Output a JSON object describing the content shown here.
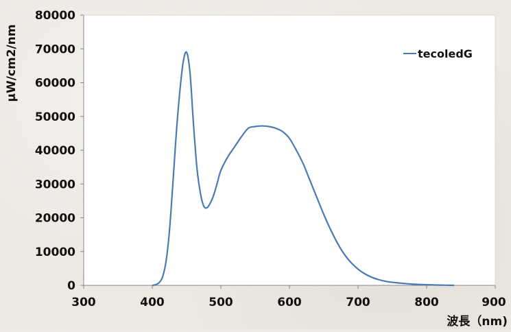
{
  "chart_data": {
    "type": "line",
    "title": "",
    "xlabel": "波長（nm)",
    "ylabel": "μW/cm2/nm",
    "xlim": [
      300,
      900
    ],
    "ylim": [
      0,
      80000
    ],
    "x_ticks": [
      "300",
      "400",
      "500",
      "600",
      "700",
      "800",
      "900"
    ],
    "y_ticks": [
      "0",
      "10000",
      "20000",
      "30000",
      "40000",
      "50000",
      "60000",
      "70000",
      "80000"
    ],
    "grid": false,
    "legend_position": "top-right",
    "series": [
      {
        "name": "tecoledG",
        "color": "#4a7ab5",
        "x": [
          400,
          405,
          410,
          415,
          420,
          425,
          430,
          435,
          440,
          445,
          450,
          455,
          460,
          465,
          470,
          475,
          480,
          485,
          490,
          495,
          500,
          510,
          520,
          530,
          540,
          550,
          560,
          570,
          580,
          590,
          600,
          610,
          620,
          630,
          640,
          650,
          660,
          670,
          680,
          690,
          700,
          710,
          720,
          730,
          740,
          750,
          760,
          770,
          780,
          790,
          800,
          810,
          820,
          830,
          840
        ],
        "y": [
          0,
          200,
          800,
          2500,
          7000,
          16000,
          30000,
          45000,
          57000,
          66000,
          69000,
          63000,
          48000,
          35000,
          27500,
          23500,
          23000,
          24500,
          27000,
          30500,
          34000,
          38000,
          41000,
          44000,
          46500,
          47000,
          47200,
          47000,
          46500,
          45500,
          43500,
          40000,
          36000,
          31000,
          26000,
          21000,
          16500,
          12500,
          9200,
          6700,
          4800,
          3400,
          2400,
          1700,
          1200,
          900,
          700,
          500,
          350,
          250,
          180,
          120,
          80,
          40,
          0
        ]
      }
    ]
  }
}
